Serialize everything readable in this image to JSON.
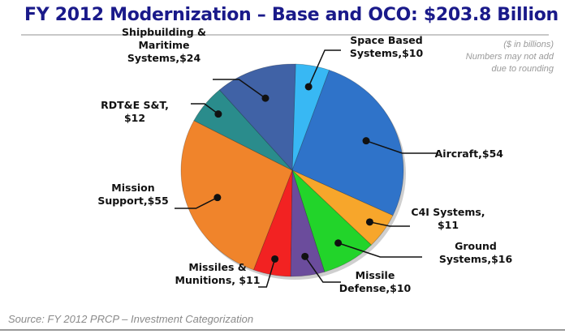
{
  "title": "FY 2012 Modernization – Base and OCO:  $203.8 Billion",
  "notes": [
    "($ in billions)",
    "Numbers may not add",
    "due to rounding"
  ],
  "source": "Source: FY 2012 PRCP – Investment Categorization",
  "chart_data": {
    "type": "pie",
    "title": "FY 2012 Modernization – Base and OCO:  $203.8 Billion",
    "unit": "$ in billions",
    "slices": [
      {
        "label": "Space Based Systems,$10",
        "lines": [
          "Space Based",
          "Systems,$10"
        ],
        "value": 10,
        "color": "#38b8f4"
      },
      {
        "label": "Aircraft,$54",
        "lines": [
          "Aircraft,$54"
        ],
        "value": 54,
        "color": "#2f73c9"
      },
      {
        "label": "C4I Systems, $11",
        "lines": [
          "C4I Systems,",
          "$11"
        ],
        "value": 11,
        "color": "#f7a62b"
      },
      {
        "label": "Ground Systems,$16",
        "lines": [
          "Ground",
          "Systems,$16"
        ],
        "value": 16,
        "color": "#22d42a"
      },
      {
        "label": "Missile Defense,$10",
        "lines": [
          "Missile",
          "Defense,$10"
        ],
        "value": 10,
        "color": "#6b4c9c"
      },
      {
        "label": "Missiles & Munitions, $11",
        "lines": [
          "Missiles &",
          "Munitions, $11"
        ],
        "value": 11,
        "color": "#f22222"
      },
      {
        "label": "Mission Support,$55",
        "lines": [
          "Mission",
          "Support,$55"
        ],
        "value": 55,
        "color": "#f0842b"
      },
      {
        "label": "RDT&E S&T, $12",
        "lines": [
          "RDT&E S&T,",
          "$12"
        ],
        "value": 12,
        "color": "#2a8c8c"
      },
      {
        "label": "Shipbuilding & Maritime Systems,$24",
        "lines": [
          "Shipbuilding &",
          "Maritime",
          "Systems,$24"
        ],
        "value": 24,
        "color": "#4062a6"
      }
    ]
  }
}
